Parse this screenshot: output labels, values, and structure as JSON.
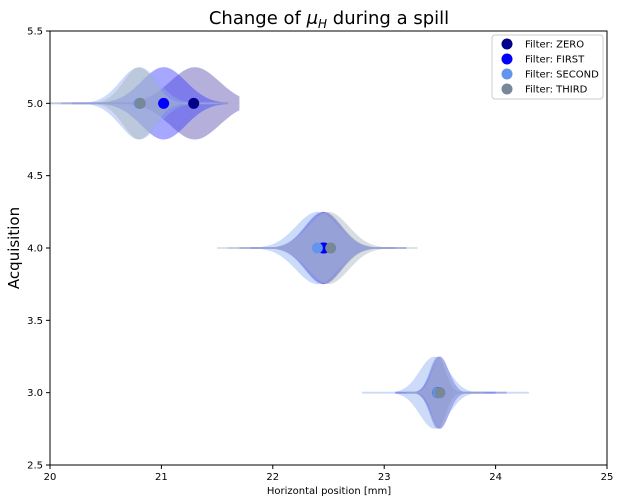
{
  "chart_data": {
    "type": "violin",
    "title_prefix": "Change of ",
    "title_math": "μ",
    "title_sub": "H",
    "title_suffix": " during a spill",
    "xlabel": "Horizontal position [mm]",
    "ylabel": "Acquisition",
    "xlim": [
      20,
      25
    ],
    "ylim": [
      2.5,
      5.5
    ],
    "xticks": [
      "20",
      "21",
      "22",
      "23",
      "24",
      "25"
    ],
    "yticks": [
      "2.5",
      "3.0",
      "3.5",
      "4.0",
      "4.5",
      "5.0",
      "5.5"
    ],
    "legend_position": "top-right",
    "series": [
      {
        "name": "Filter: ZERO",
        "color": "#00008b",
        "fill": "#5a4fb0",
        "means": [
          {
            "x": 21.29,
            "y": 5.0
          },
          {
            "x": 22.46,
            "y": 4.0
          },
          {
            "x": 23.48,
            "y": 3.0
          }
        ],
        "violins": [
          {
            "y": 5.0,
            "xmin": 20.1,
            "xmax": 21.7,
            "peak": 21.3,
            "spread": 0.22
          },
          {
            "y": 4.0,
            "xmin": 21.7,
            "xmax": 23.2,
            "peak": 22.46,
            "spread": 0.16
          },
          {
            "y": 3.0,
            "xmin": 23.1,
            "xmax": 24.1,
            "peak": 23.48,
            "spread": 0.07
          }
        ]
      },
      {
        "name": "Filter: FIRST",
        "color": "#0000ff",
        "fill": "#3b3bff",
        "means": [
          {
            "x": 21.02,
            "y": 5.0
          },
          {
            "x": 22.45,
            "y": 4.0
          },
          {
            "x": 23.48,
            "y": 3.0
          }
        ],
        "violins": [
          {
            "y": 5.0,
            "xmin": 20.2,
            "xmax": 21.6,
            "peak": 21.02,
            "spread": 0.2
          },
          {
            "y": 4.0,
            "xmin": 21.8,
            "xmax": 23.1,
            "peak": 22.45,
            "spread": 0.16
          },
          {
            "y": 3.0,
            "xmin": 23.1,
            "xmax": 24.0,
            "peak": 23.5,
            "spread": 0.08
          }
        ]
      },
      {
        "name": "Filter: SECOND",
        "color": "#6495ed",
        "fill": "#8fb0f0",
        "means": [
          {
            "x": 20.8,
            "y": 5.0
          },
          {
            "x": 22.4,
            "y": 4.0
          },
          {
            "x": 23.48,
            "y": 3.0
          }
        ],
        "violins": [
          {
            "y": 5.0,
            "xmin": 20.0,
            "xmax": 21.5,
            "peak": 20.8,
            "spread": 0.17
          },
          {
            "y": 4.0,
            "xmin": 21.6,
            "xmax": 23.2,
            "peak": 22.4,
            "spread": 0.19
          },
          {
            "y": 3.0,
            "xmin": 22.8,
            "xmax": 24.3,
            "peak": 23.45,
            "spread": 0.13
          }
        ]
      },
      {
        "name": "Filter: THIRD",
        "color": "#778899",
        "fill": "#a9b3bd",
        "means": [
          {
            "x": 20.81,
            "y": 5.0
          },
          {
            "x": 22.52,
            "y": 4.0
          },
          {
            "x": 23.5,
            "y": 3.0
          }
        ],
        "violins": [
          {
            "y": 5.0,
            "xmin": 20.0,
            "xmax": 21.7,
            "peak": 20.8,
            "spread": 0.14
          },
          {
            "y": 4.0,
            "xmin": 21.5,
            "xmax": 23.3,
            "peak": 22.5,
            "spread": 0.18
          },
          {
            "y": 3.0,
            "xmin": 23.2,
            "xmax": 23.9,
            "peak": 23.5,
            "spread": 0.07
          }
        ]
      }
    ]
  }
}
